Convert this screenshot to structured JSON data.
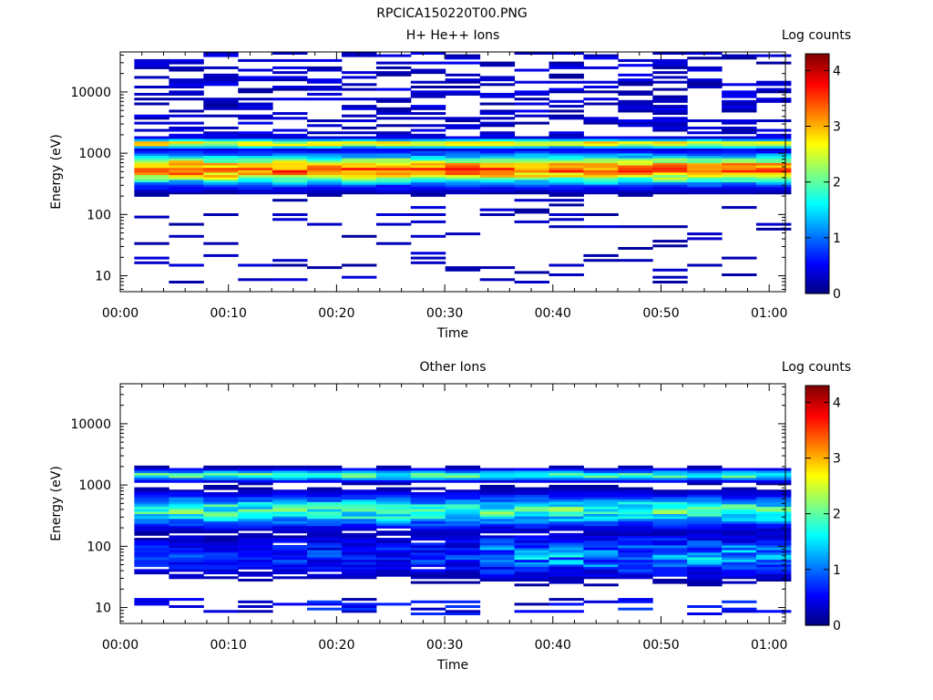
{
  "figure_title": "RPCICA150220T00.PNG",
  "colorbar": {
    "label": "Log counts",
    "ticks": [
      "0",
      "1",
      "2",
      "3",
      "4"
    ],
    "range": [
      0,
      4.3
    ],
    "colormap": [
      "#00007f",
      "#0000ff",
      "#007fff",
      "#00ffff",
      "#7fff7f",
      "#ffff00",
      "#ff7f00",
      "#ff0000",
      "#7f0000"
    ]
  },
  "chart_data": [
    {
      "type": "heatmap",
      "title": "H+ He++ Ions",
      "xlabel": "Time",
      "ylabel": "Energy (eV)",
      "x_tick_labels": [
        "00:00",
        "00:10",
        "00:20",
        "00:30",
        "00:40",
        "00:50",
        "01:00"
      ],
      "x_range_minutes": [
        0,
        61.5
      ],
      "y_tick_labels": [
        "10",
        "100",
        "1000",
        "10000"
      ],
      "y_scale": "log",
      "y_range": [
        5.5,
        45000
      ],
      "time_bins": 19,
      "energy_bins": 96,
      "value_label": "Log counts",
      "value_range": [
        0,
        4.3
      ],
      "profile": {
        "high_energy_sparse_counts": [
          0.0,
          0.5
        ],
        "band_1400_eV_peak": 3.2,
        "main_band_300_800_eV_peak": 3.8,
        "low_energy_sparse_counts": [
          0.0,
          0.4
        ]
      }
    },
    {
      "type": "heatmap",
      "title": "Other Ions",
      "xlabel": "Time",
      "ylabel": "Energy (eV)",
      "x_tick_labels": [
        "00:00",
        "00:10",
        "00:20",
        "00:30",
        "00:40",
        "00:50",
        "01:00"
      ],
      "x_range_minutes": [
        0,
        61.5
      ],
      "y_tick_labels": [
        "10",
        "100",
        "1000",
        "10000"
      ],
      "y_scale": "log",
      "y_range": [
        5.5,
        45000
      ],
      "time_bins": 19,
      "energy_bins": 96,
      "value_label": "Log counts",
      "value_range": [
        0,
        4.3
      ],
      "profile": {
        "band_1400_eV_peak": 2.3,
        "main_band_200_700_eV_peak": 2.4,
        "low_energy_20_100_eV_peak": 1.8,
        "sparse_10_eV_counts": [
          0.0,
          0.8
        ]
      }
    }
  ]
}
